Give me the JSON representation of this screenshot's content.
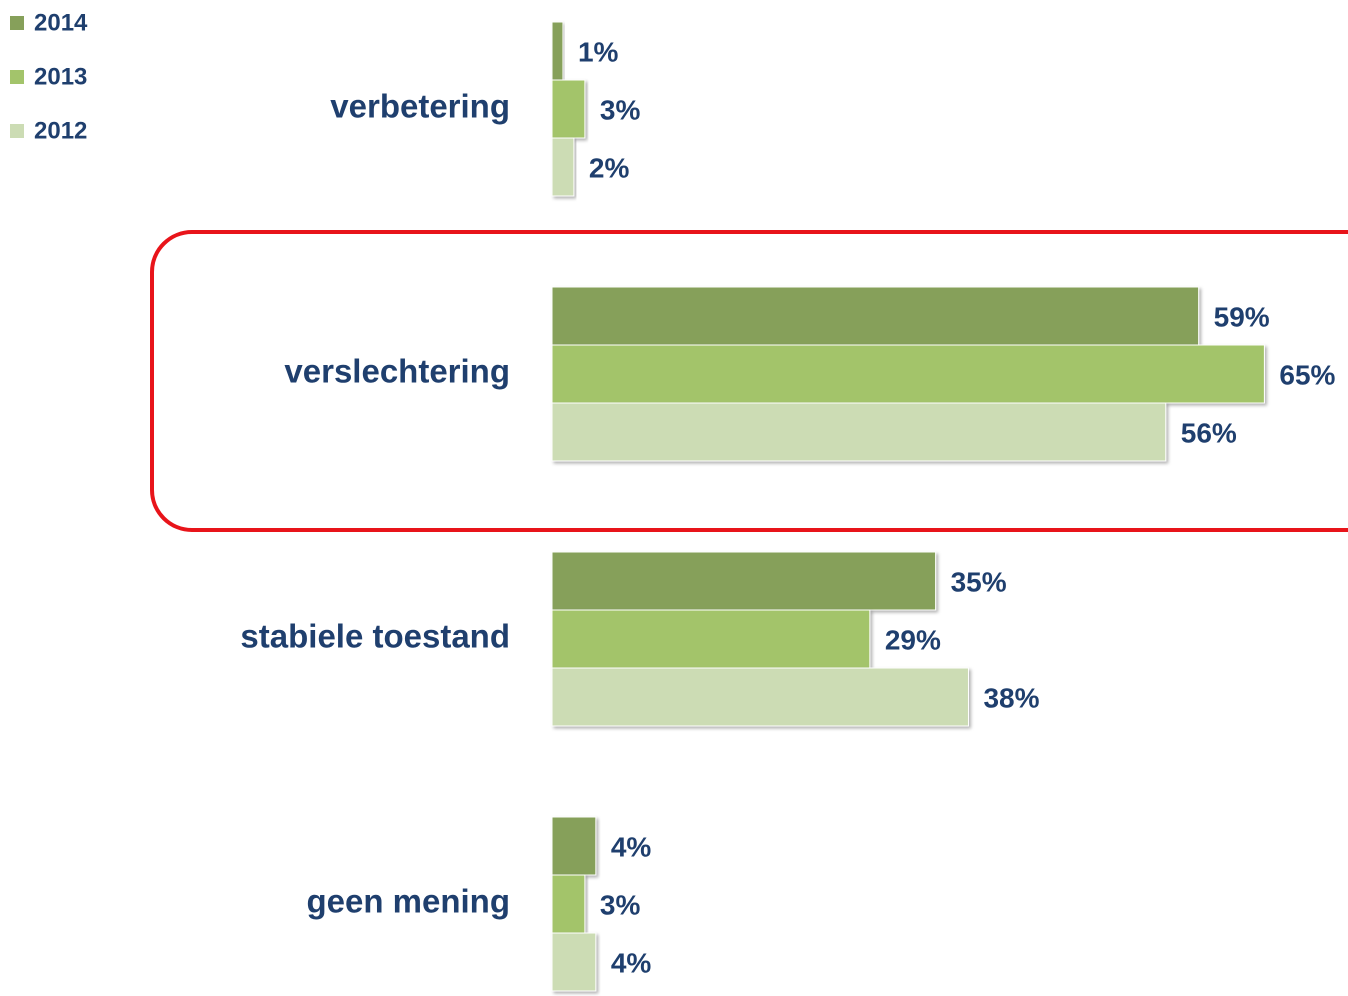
{
  "chart_data": {
    "type": "bar",
    "orientation": "horizontal",
    "categories": [
      "verbetering",
      "verslechtering",
      "stabiele toestand",
      "geen mening"
    ],
    "series": [
      {
        "name": "2014",
        "color": "#86a05a",
        "values": [
          1,
          59,
          35,
          4
        ],
        "value_labels": [
          "1%",
          "59%",
          "35%",
          "4%"
        ]
      },
      {
        "name": "2013",
        "color": "#a3c46b",
        "values": [
          3,
          65,
          29,
          3
        ],
        "value_labels": [
          "3%",
          "65%",
          "29%",
          "3%"
        ]
      },
      {
        "name": "2012",
        "color": "#ccdcb4",
        "values": [
          2,
          56,
          38,
          4
        ],
        "value_labels": [
          "2%",
          "56%",
          "38%",
          "4%"
        ]
      }
    ],
    "legend": "top-left"
  }
}
